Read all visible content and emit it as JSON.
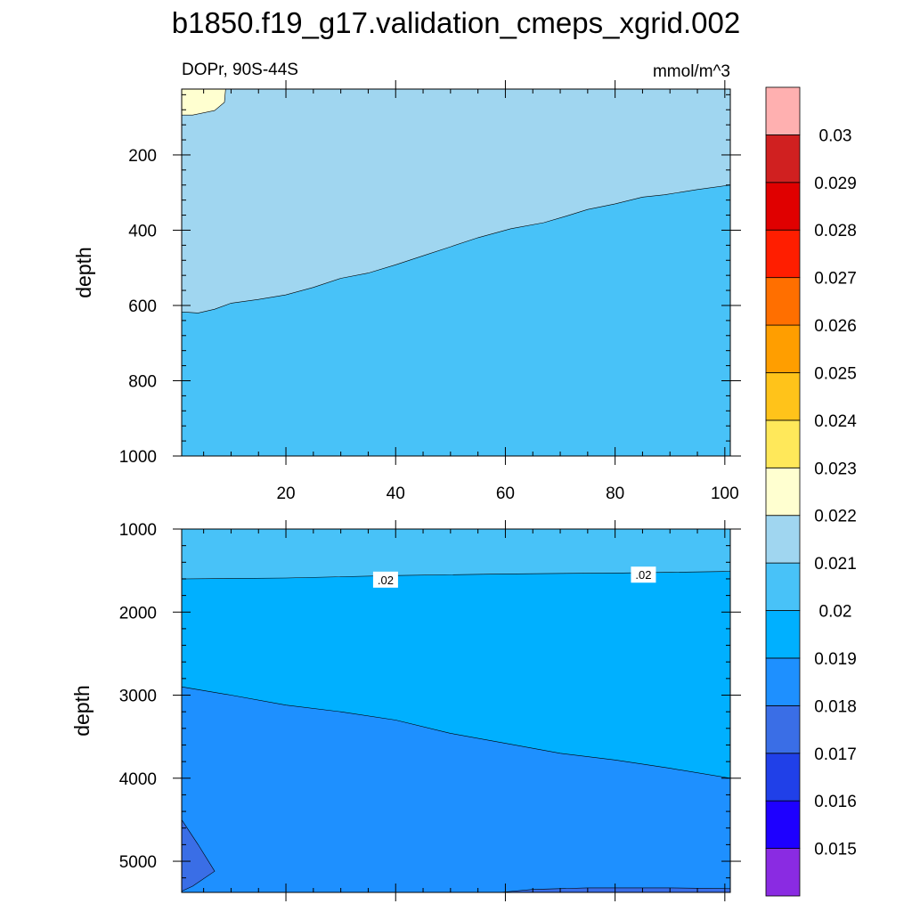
{
  "chart_data": {
    "type": "filled-contour",
    "title": "b1850.f19_g17.validation_cmeps_xgrid.002",
    "colorbar": {
      "levels": [
        "0.015",
        "0.016",
        "0.017",
        "0.018",
        "0.019",
        "0.02",
        "0.021",
        "0.022",
        "0.023",
        "0.024",
        "0.025",
        "0.026",
        "0.027",
        "0.028",
        "0.029",
        "0.03"
      ],
      "colors": [
        "#8a2be2",
        "#1e00ff",
        "#2040e8",
        "#3a6ee6",
        "#1e90ff",
        "#00b0ff",
        "#48c2f8",
        "#a0d6f0",
        "#ffffd0",
        "#ffe85a",
        "#ffc31a",
        "#ff9e00",
        "#ff6f00",
        "#ff1e00",
        "#e00000",
        "#d02020",
        "#ffb0b0"
      ]
    },
    "panels": [
      {
        "id": "upper",
        "left_label": "DOPr, 90S-44S",
        "right_label": "mmol/m^3",
        "ylabel": "depth",
        "xlim": [
          1,
          101
        ],
        "ylim": [
          1000,
          25
        ],
        "xticks": [
          20,
          40,
          60,
          80,
          100
        ],
        "xtick_labels": [
          "20",
          "40",
          "60",
          "80",
          "100"
        ],
        "yticks": [
          200,
          400,
          600,
          800,
          1000
        ],
        "ytick_labels": [
          "200",
          "400",
          "600",
          "800",
          "1000"
        ],
        "regions": [
          {
            "value_range": "0.02-0.021",
            "color": "#48c2f8",
            "polygon": [
              [
                1,
                1000
              ],
              [
                101,
                1000
              ],
              [
                101,
                25
              ],
              [
                1,
                25
              ]
            ]
          },
          {
            "value_range": "0.021-0.022",
            "color": "#a0d6f0",
            "polygon": [
              [
                1,
                25
              ],
              [
                101,
                25
              ],
              [
                101,
                280
              ],
              [
                95,
                292
              ],
              [
                89,
                306
              ],
              [
                85,
                312
              ],
              [
                80,
                330
              ],
              [
                75,
                345
              ],
              [
                71,
                363
              ],
              [
                67,
                380
              ],
              [
                61,
                396
              ],
              [
                55,
                420
              ],
              [
                50,
                444
              ],
              [
                45,
                468
              ],
              [
                40,
                492
              ],
              [
                35,
                514
              ],
              [
                30,
                528
              ],
              [
                25,
                552
              ],
              [
                20,
                572
              ],
              [
                15,
                584
              ],
              [
                10,
                594
              ],
              [
                7,
                610
              ],
              [
                4,
                620
              ],
              [
                1,
                617
              ]
            ]
          },
          {
            "value_range": "0.022-0.023",
            "color": "#ffffd0",
            "polygon": [
              [
                1,
                25
              ],
              [
                9,
                25
              ],
              [
                8.8,
                60
              ],
              [
                7,
                82
              ],
              [
                3,
                94
              ],
              [
                1,
                94
              ]
            ]
          }
        ],
        "contour_labels": []
      },
      {
        "id": "lower",
        "ylabel": "depth",
        "xlim": [
          1,
          101
        ],
        "ylim": [
          5375,
          1000
        ],
        "xticks": [
          20,
          40,
          60,
          80,
          100
        ],
        "yticks": [
          1000,
          2000,
          3000,
          4000,
          5000
        ],
        "ytick_labels": [
          "1000",
          "2000",
          "3000",
          "4000",
          "5000"
        ],
        "regions": [
          {
            "value_range": "0.018-0.019",
            "color": "#1e90ff",
            "polygon": [
              [
                1,
                5375
              ],
              [
                101,
                5375
              ],
              [
                101,
                1000
              ],
              [
                1,
                1000
              ]
            ]
          },
          {
            "value_range": "0.019-0.02",
            "color": "#00b0ff",
            "polygon": [
              [
                1,
                1000
              ],
              [
                101,
                1000
              ],
              [
                101,
                4000
              ],
              [
                90,
                3880
              ],
              [
                80,
                3780
              ],
              [
                70,
                3700
              ],
              [
                60,
                3580
              ],
              [
                50,
                3460
              ],
              [
                40,
                3300
              ],
              [
                30,
                3200
              ],
              [
                20,
                3120
              ],
              [
                10,
                3000
              ],
              [
                1,
                2900
              ]
            ]
          },
          {
            "value_range": "0.02-0.021",
            "color": "#48c2f8",
            "polygon": [
              [
                1,
                1000
              ],
              [
                101,
                1000
              ],
              [
                101,
                1510
              ],
              [
                80,
                1530
              ],
              [
                60,
                1540
              ],
              [
                40,
                1560
              ],
              [
                20,
                1590
              ],
              [
                1,
                1600
              ]
            ]
          },
          {
            "value_range": "0.017-0.018",
            "color": "#3a6ee6",
            "polygon": [
              [
                1,
                4500
              ],
              [
                4,
                4800
              ],
              [
                7,
                5120
              ],
              [
                3,
                5300
              ],
              [
                1,
                5360
              ]
            ]
          },
          {
            "value_range": "0.017-0.018",
            "color": "#3a6ee6",
            "polygon": [
              [
                59,
                5375
              ],
              [
                65,
                5340
              ],
              [
                75,
                5320
              ],
              [
                90,
                5320
              ],
              [
                101,
                5330
              ],
              [
                101,
                5375
              ]
            ]
          }
        ],
        "contour_labels": [
          {
            "text": ".02",
            "x": 38,
            "y": 1620
          },
          {
            "text": ".02",
            "x": 85,
            "y": 1560
          }
        ]
      }
    ]
  }
}
